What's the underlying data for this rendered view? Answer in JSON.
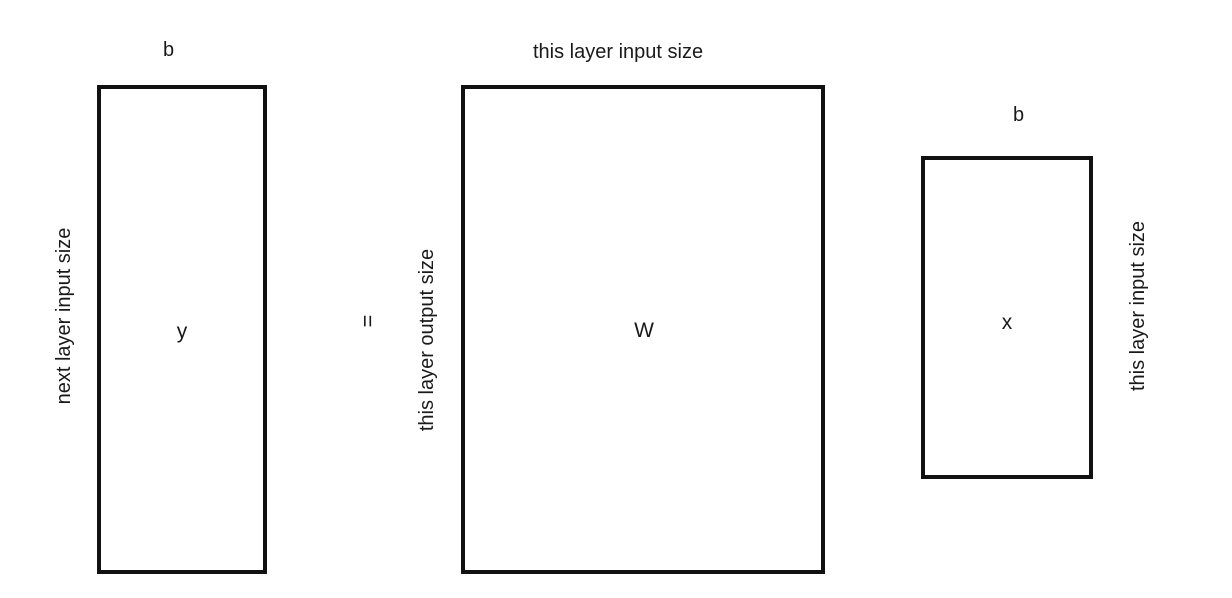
{
  "diagram": {
    "y_matrix": {
      "name": "y",
      "top_label": "b",
      "side_label": "next layer input size"
    },
    "equals": "=",
    "w_matrix": {
      "name": "W",
      "top_label": "this layer input size",
      "side_label": "this layer output size"
    },
    "x_matrix": {
      "name": "x",
      "top_label": "b",
      "side_label": "this layer input size"
    }
  }
}
